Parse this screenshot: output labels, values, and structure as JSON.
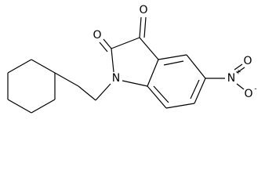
{
  "atoms": {
    "o_c3": "O",
    "o_c2": "O",
    "n1": "N",
    "n_nitro": "N",
    "n_nitro_charge": "+",
    "o_nitro": "O",
    "o_nitro_minus": "O",
    "o_nitro_charge": "-"
  }
}
